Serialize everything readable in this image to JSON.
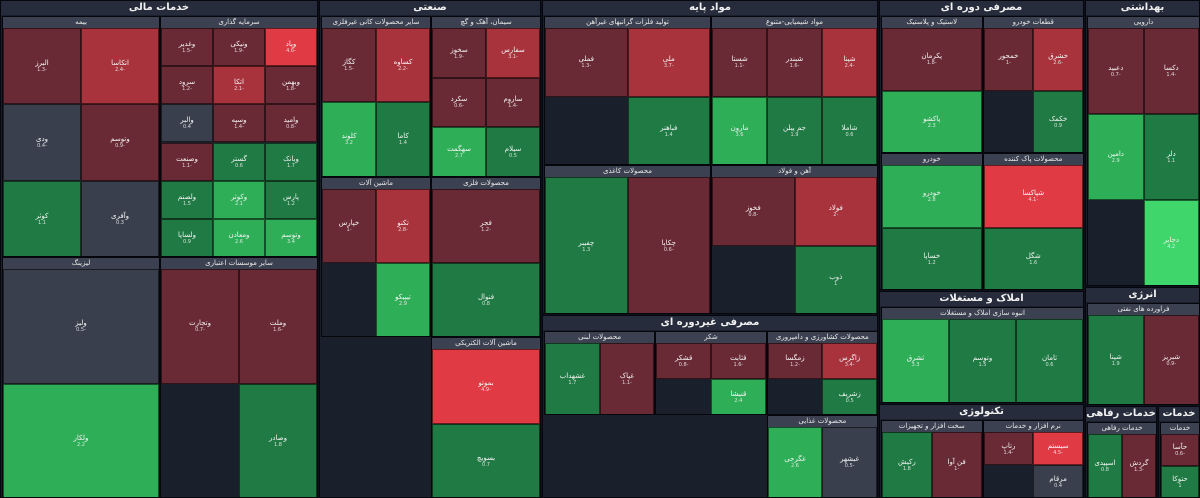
{
  "colors": {
    "strong_negative": "#e03a44",
    "negative": "#a8333d",
    "mild_negative": "#6a2a35",
    "neutral": "#3a3f4d",
    "mild_positive": "#1f7a44",
    "positive": "#2fae58",
    "strong_positive": "#3fd66b"
  },
  "chart_data": {
    "type": "treemap",
    "title": "",
    "color_metric": "daily price change (%)",
    "sectors": [
      {
        "name": "خدمات مالی",
        "industries": [
          {
            "name": "سرمایه گذاری",
            "tiles": [
              {
                "name": "وپاد",
                "change": -4.6
              },
              {
                "name": "ونیکی",
                "change": -1.9
              },
              {
                "name": "وغدیر",
                "change": -1.5
              },
              {
                "name": "وبهمن",
                "change": -1.8
              },
              {
                "name": "اتکا",
                "change": -2.1
              },
              {
                "name": "سرود",
                "change": -1.2
              },
              {
                "name": "وامید",
                "change": -0.8
              },
              {
                "name": "وسپه",
                "change": -1.4
              },
              {
                "name": "والبر",
                "change": 0.4
              },
              {
                "name": "وبانک",
                "change": 1.7
              },
              {
                "name": "گستر",
                "change": 0.6
              },
              {
                "name": "وصنعت",
                "change": -1.1
              },
              {
                "name": "پارس",
                "change": 1.2
              },
              {
                "name": "وکوثر",
                "change": 2.1
              },
              {
                "name": "ولصنم",
                "change": 1.5
              },
              {
                "name": "وتوسم",
                "change": 3.4
              },
              {
                "name": "ومعادن",
                "change": 2.6
              },
              {
                "name": "ولساپا",
                "change": 0.9
              }
            ]
          },
          {
            "name": "بیمه",
            "tiles": [
              {
                "name": "اتکاسا",
                "change": -2.4
              },
              {
                "name": "البرز",
                "change": -1.3
              },
              {
                "name": "وتوسم",
                "change": -0.9
              },
              {
                "name": "ودی",
                "change": -0.4
              },
              {
                "name": "وآفری",
                "change": 0.3
              },
              {
                "name": "کوثر",
                "change": 1.1
              }
            ]
          },
          {
            "name": "سایر موسسات اعتباری",
            "tiles": [
              {
                "name": "وملت",
                "change": -1.6
              },
              {
                "name": "وتجارت",
                "change": -0.7
              },
              {
                "name": "وصادر",
                "change": 1.8
              }
            ]
          },
          {
            "name": "لیزینگ",
            "tiles": [
              {
                "name": "ولیز",
                "change": -0.5
              },
              {
                "name": "ولکار",
                "change": 2.2
              }
            ]
          }
        ]
      },
      {
        "name": "صنعتی",
        "industries": [
          {
            "name": "سیمان، آهک و گچ",
            "tiles": [
              {
                "name": "سفارس",
                "change": -3.1
              },
              {
                "name": "سخوز",
                "change": -1.9
              },
              {
                "name": "ساروم",
                "change": -1.4
              },
              {
                "name": "سکرد",
                "change": -0.6
              },
              {
                "name": "سیلام",
                "change": 0.5
              },
              {
                "name": "سهگمت",
                "change": 2.7
              }
            ]
          },
          {
            "name": "سایر محصولات کانی غیرفلزی",
            "tiles": [
              {
                "name": "کساوه",
                "change": -2.2
              },
              {
                "name": "کگاز",
                "change": -1.5
              },
              {
                "name": "کاما",
                "change": 1.4
              },
              {
                "name": "کلوند",
                "change": 3.2
              }
            ]
          },
          {
            "name": "محصولات فلزی",
            "tiles": [
              {
                "name": "فجر",
                "change": -1.2
              },
              {
                "name": "فنوال",
                "change": 0.8
              }
            ]
          },
          {
            "name": "ماشین آلات",
            "tiles": [
              {
                "name": "تکنو",
                "change": -2.8
              },
              {
                "name": "خپارس",
                "change": -1.0
              },
              {
                "name": "تیپیکو",
                "change": 2.9
              }
            ]
          },
          {
            "name": "ماشین آلات الکتریکی",
            "tiles": [
              {
                "name": "بموتو",
                "change": -4.9
              },
              {
                "name": "بسویچ",
                "change": 0.7
              }
            ]
          }
        ]
      },
      {
        "name": "مواد پایه",
        "industries": [
          {
            "name": "مواد شیمیایی-متنوع",
            "tiles": [
              {
                "name": "شپنا",
                "change": -2.4
              },
              {
                "name": "شبندر",
                "change": -1.6
              },
              {
                "name": "شستا",
                "change": -1.1
              },
              {
                "name": "شاملا",
                "change": 0.6
              },
              {
                "name": "جم پیلن",
                "change": 1.9
              },
              {
                "name": "مارون",
                "change": 3.6
              }
            ]
          },
          {
            "name": "تولید فلزات گرانبهای غیرآهن",
            "tiles": [
              {
                "name": "ملی",
                "change": -3.7
              },
              {
                "name": "فملی",
                "change": -1.3
              },
              {
                "name": "فباهنر",
                "change": 1.4
              }
            ]
          },
          {
            "name": "آهن و فولاد",
            "tiles": [
              {
                "name": "فولاد",
                "change": -2.0
              },
              {
                "name": "فخوز",
                "change": -0.8
              },
              {
                "name": "ذوب",
                "change": 1.0
              }
            ]
          },
          {
            "name": "محصولات کاغذی",
            "tiles": [
              {
                "name": "چکاپا",
                "change": -0.6
              },
              {
                "name": "چفیبر",
                "change": 1.3
              }
            ]
          }
        ]
      },
      {
        "name": "مصرفی دوره ای",
        "industries": [
          {
            "name": "قطعات خودرو",
            "tiles": [
              {
                "name": "خشرق",
                "change": -2.6
              },
              {
                "name": "خمحور",
                "change": -1.0
              },
              {
                "name": "خکمک",
                "change": 0.9
              }
            ]
          },
          {
            "name": "لاستیک و پلاستیک",
            "tiles": [
              {
                "name": "پکرمان",
                "change": -1.8
              },
              {
                "name": "پاکشو",
                "change": 2.3
              }
            ]
          },
          {
            "name": "محصولات پاک کننده",
            "tiles": [
              {
                "name": "شپاکسا",
                "change": -4.1
              },
              {
                "name": "شگل",
                "change": 1.6
              }
            ]
          },
          {
            "name": "خودرو",
            "tiles": [
              {
                "name": "خودرو",
                "change": 2.8
              },
              {
                "name": "خساپا",
                "change": 1.2
              }
            ]
          }
        ]
      },
      {
        "name": "بهداشتی",
        "industries": [
          {
            "name": "دارویی",
            "tiles": [
              {
                "name": "دکسا",
                "change": -1.4
              },
              {
                "name": "دعبید",
                "change": -0.7
              },
              {
                "name": "دلر",
                "change": 1.1
              },
              {
                "name": "دامین",
                "change": 2.9
              },
              {
                "name": "دجابر",
                "change": 4.2
              }
            ]
          }
        ]
      },
      {
        "name": "انرژی",
        "industries": [
          {
            "name": "فراورده های نفتی",
            "tiles": [
              {
                "name": "شبریز",
                "change": -0.9
              },
              {
                "name": "شپنا",
                "change": 1.9
              }
            ]
          }
        ]
      },
      {
        "name": "املاک و مستغلات",
        "industries": [
          {
            "name": "انبوه سازی املاک و مستغلات",
            "tiles": [
              {
                "name": "ثامان",
                "change": 0.6
              },
              {
                "name": "وتوسم",
                "change": 1.5
              },
              {
                "name": "ثشرق",
                "change": 3.3
              }
            ]
          }
        ]
      },
      {
        "name": "مصرفی غیردوره ای",
        "industries": [
          {
            "name": "محصولات کشاورزی و دامپروری",
            "tiles": [
              {
                "name": "زاگرس",
                "change": -3.4
              },
              {
                "name": "زمگسا",
                "change": -1.2
              },
              {
                "name": "زشریف",
                "change": 0.5
              }
            ]
          },
          {
            "name": "شکر",
            "tiles": [
              {
                "name": "قثابت",
                "change": -1.6
              },
              {
                "name": "قشکر",
                "change": -0.8
              },
              {
                "name": "قنیشا",
                "change": 2.4
              }
            ]
          },
          {
            "name": "محصولات لبنی",
            "tiles": [
              {
                "name": "غپاک",
                "change": -1.1
              },
              {
                "name": "غشهداب",
                "change": 1.7
              }
            ]
          },
          {
            "name": "محصولات غذایی",
            "tiles": [
              {
                "name": "غبشهر",
                "change": -0.5
              },
              {
                "name": "غگرجی",
                "change": 2.6
              }
            ]
          }
        ]
      },
      {
        "name": "تکنولوژی",
        "industries": [
          {
            "name": "نرم افزار و خدمات",
            "tiles": [
              {
                "name": "سیستم",
                "change": -4.5
              },
              {
                "name": "رتاپ",
                "change": -1.4
              },
              {
                "name": "مرقام",
                "change": 0.4
              }
            ]
          },
          {
            "name": "سخت افزار و تجهیزات",
            "tiles": [
              {
                "name": "فن آوا",
                "change": -1.0
              },
              {
                "name": "رکیش",
                "change": 1.8
              }
            ]
          }
        ]
      },
      {
        "name": "خدمات رفاهی",
        "industries": [
          {
            "name": "خدمات رفاهی",
            "tiles": [
              {
                "name": "گردش",
                "change": -1.3
              },
              {
                "name": "اسپیدی",
                "change": 0.8
              }
            ]
          }
        ]
      },
      {
        "name": "خدمات",
        "industries": [
          {
            "name": "خدمات",
            "tiles": [
              {
                "name": "حآسا",
                "change": -0.6
              },
              {
                "name": "حتوکا",
                "change": 1.0
              }
            ]
          }
        ]
      }
    ]
  }
}
